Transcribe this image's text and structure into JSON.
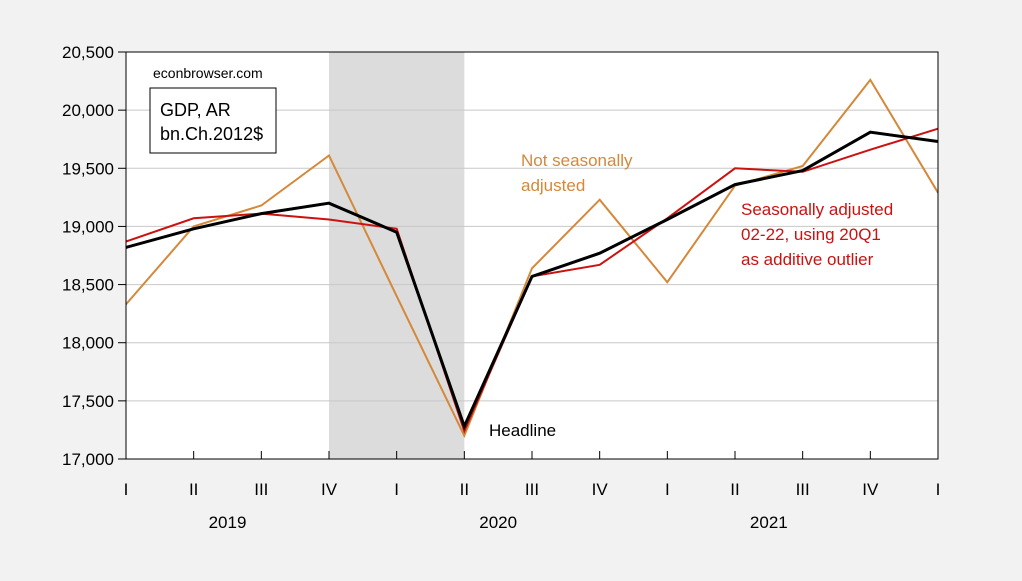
{
  "chart_data": {
    "type": "line",
    "categories": [
      "I",
      "II",
      "III",
      "IV",
      "I",
      "II",
      "III",
      "IV",
      "I",
      "II",
      "III",
      "IV",
      "I"
    ],
    "years": [
      {
        "label": "2019",
        "start": 0
      },
      {
        "label": "2020",
        "start": 4
      },
      {
        "label": "2021",
        "start": 8
      }
    ],
    "ylim": [
      17000,
      20500
    ],
    "yticks": [
      17000,
      17500,
      18000,
      18500,
      19000,
      19500,
      20000,
      20500
    ],
    "ytick_labels": [
      "17,000",
      "17,500",
      "18,000",
      "18,500",
      "19,000",
      "19,500",
      "20,000",
      "20,500"
    ],
    "grid": true,
    "recession_shading": {
      "from": 3,
      "to": 5,
      "color": "#dcdcdc"
    },
    "series": [
      {
        "id": "nsa",
        "color": "#d4883a",
        "width": 2,
        "values": [
          18330,
          19000,
          19180,
          19610,
          18400,
          17200,
          18640,
          19230,
          18520,
          19350,
          19520,
          20260,
          19290
        ]
      },
      {
        "id": "sa-alt",
        "color": "#cc1111",
        "width": 2,
        "values": [
          18870,
          19070,
          19110,
          19060,
          18980,
          17240,
          18570,
          18670,
          19070,
          19500,
          19470,
          19660,
          19840
        ]
      },
      {
        "id": "headline",
        "color": "#000000",
        "width": 3,
        "values": [
          18820,
          18980,
          19110,
          19200,
          18950,
          17280,
          18570,
          18770,
          19060,
          19360,
          19480,
          19810,
          19730
        ]
      }
    ],
    "annotations": {
      "source": "econbrowser.com",
      "units_line1": "GDP, AR",
      "units_line2": "bn.Ch.2012$",
      "nsa_line1": "Not seasonally",
      "nsa_line2": "adjusted",
      "sa_line1": "Seasonally adjusted",
      "sa_line2": "02-22, using 20Q1",
      "sa_line3": "as additive outlier",
      "headline": "Headline"
    },
    "colors": {
      "nsa": "#d4883a",
      "sa": "#cc1111",
      "headline": "#000000"
    }
  }
}
